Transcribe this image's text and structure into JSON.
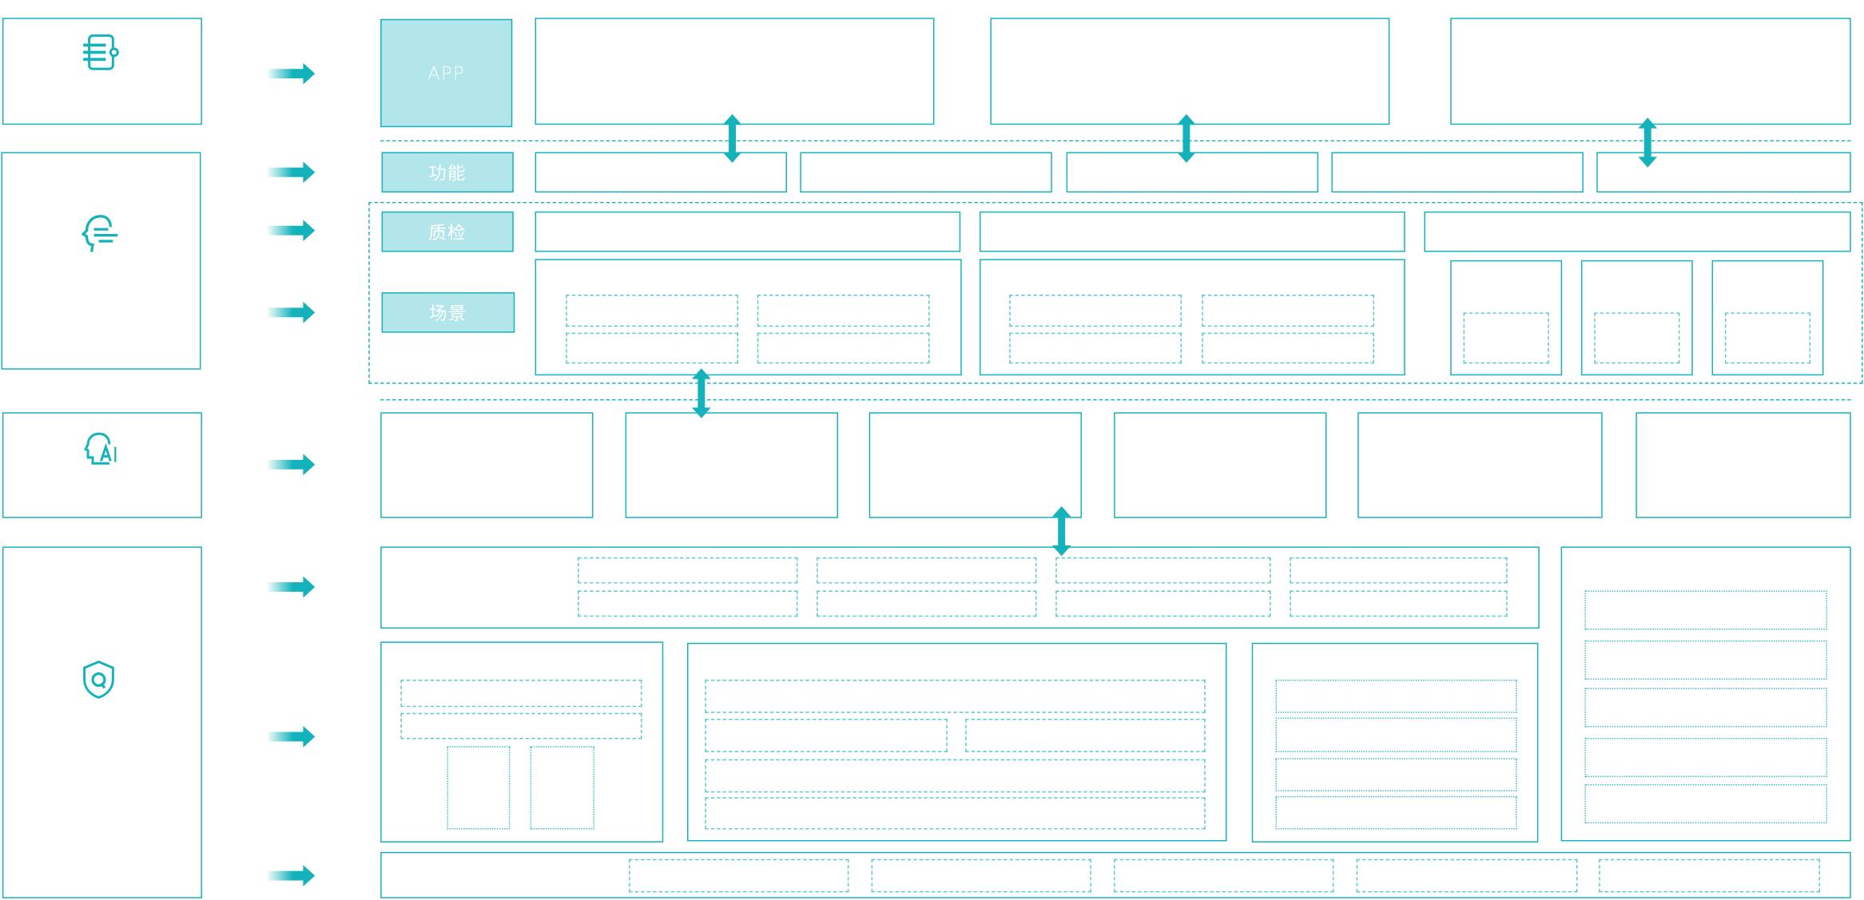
{
  "labels": {
    "app": "APP",
    "function": "功能",
    "quality": "质检",
    "scene": "场景"
  },
  "left_icons": [
    "document-list-icon",
    "head-speech-icon",
    "ai-head-icon",
    "shield-q-icon"
  ],
  "colors": {
    "accent": "#14b3bb",
    "label_fill": "#b3e6ea",
    "dotted": "#5cc8d0"
  }
}
